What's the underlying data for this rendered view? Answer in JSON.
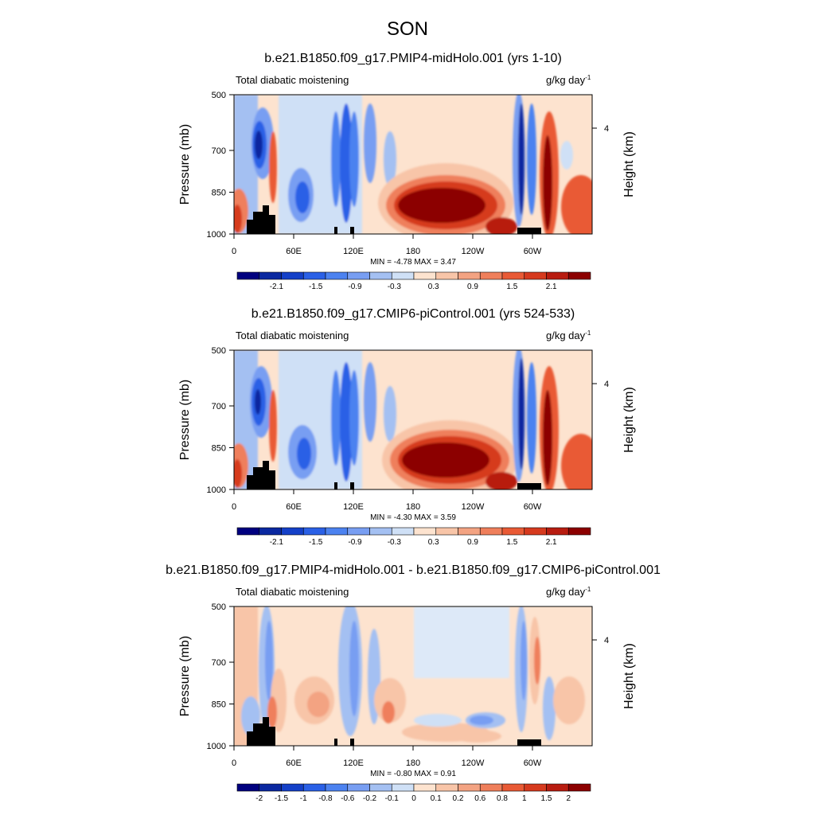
{
  "figure_title": "SON",
  "chart_data": [
    {
      "type": "heatmap",
      "title": "b.e21.B1850.f09_g17.PMIP4-midHolo.001 (yrs 1-10)",
      "left_label": "Total diabatic moistening",
      "units": "g/kg day",
      "units_sup": "-1",
      "ylabel": "Pressure (mb)",
      "ylabel_right": "Height (km)",
      "yticks": [
        "500",
        "700",
        "850",
        "1000"
      ],
      "yticks_right": [
        "4"
      ],
      "xticks": [
        "0",
        "60E",
        "120E",
        "180",
        "120W",
        "60W"
      ],
      "ylim": [
        1000,
        500
      ],
      "xlim": [
        0,
        360
      ],
      "min_label": "MIN =",
      "min_value": "-4.78",
      "max_label": "MAX =",
      "max_value": "3.47",
      "colorbar_labels": [
        "-2.1",
        "-1.5",
        "-0.9",
        "-0.3",
        "0.3",
        "0.9",
        "1.5",
        "2.1"
      ],
      "colorbar_levels": 16
    },
    {
      "type": "heatmap",
      "title": "b.e21.B1850.f09_g17.CMIP6-piControl.001 (yrs 524-533)",
      "left_label": "Total diabatic moistening",
      "units": "g/kg day",
      "units_sup": "-1",
      "ylabel": "Pressure (mb)",
      "ylabel_right": "Height (km)",
      "yticks": [
        "500",
        "700",
        "850",
        "1000"
      ],
      "yticks_right": [
        "4"
      ],
      "xticks": [
        "0",
        "60E",
        "120E",
        "180",
        "120W",
        "60W"
      ],
      "ylim": [
        1000,
        500
      ],
      "xlim": [
        0,
        360
      ],
      "min_label": "MIN =",
      "min_value": "-4.30",
      "max_label": "MAX =",
      "max_value": "3.59",
      "colorbar_labels": [
        "-2.1",
        "-1.5",
        "-0.9",
        "-0.3",
        "0.3",
        "0.9",
        "1.5",
        "2.1"
      ],
      "colorbar_levels": 16
    },
    {
      "type": "heatmap",
      "title": "b.e21.B1850.f09_g17.PMIP4-midHolo.001 - b.e21.B1850.f09_g17.CMIP6-piControl.001",
      "left_label": "Total diabatic moistening",
      "units": "g/kg day",
      "units_sup": "-1",
      "ylabel": "Pressure (mb)",
      "ylabel_right": "Height (km)",
      "yticks": [
        "500",
        "700",
        "850",
        "1000"
      ],
      "yticks_right": [
        "4"
      ],
      "xticks": [
        "0",
        "60E",
        "120E",
        "180",
        "120W",
        "60W"
      ],
      "ylim": [
        1000,
        500
      ],
      "xlim": [
        0,
        360
      ],
      "min_label": "MIN =",
      "min_value": "-0.80",
      "max_label": "MAX =",
      "max_value": "0.91",
      "colorbar_labels": [
        "-2",
        "-1.5",
        "-1",
        "-0.8",
        "-0.6",
        "-0.2",
        "-0.1",
        "0",
        "0.1",
        "0.2",
        "0.6",
        "0.8",
        "1",
        "1.5",
        "2"
      ],
      "colorbar_levels": 16
    }
  ],
  "colors": {
    "scale_neg": [
      "#00007f",
      "#0a28a0",
      "#1440c8",
      "#2a60e6",
      "#4c82f0",
      "#789ef2",
      "#a4c0f2",
      "#cfe0f6"
    ],
    "scale_pos": [
      "#fde3cf",
      "#f8c5a8",
      "#f3a382",
      "#ef7f5b",
      "#e95a35",
      "#d63a1e",
      "#b81c10",
      "#8c0000"
    ],
    "land": "#000000",
    "background_pos": "#fde3cf",
    "background_neg": "#dde9f8"
  }
}
